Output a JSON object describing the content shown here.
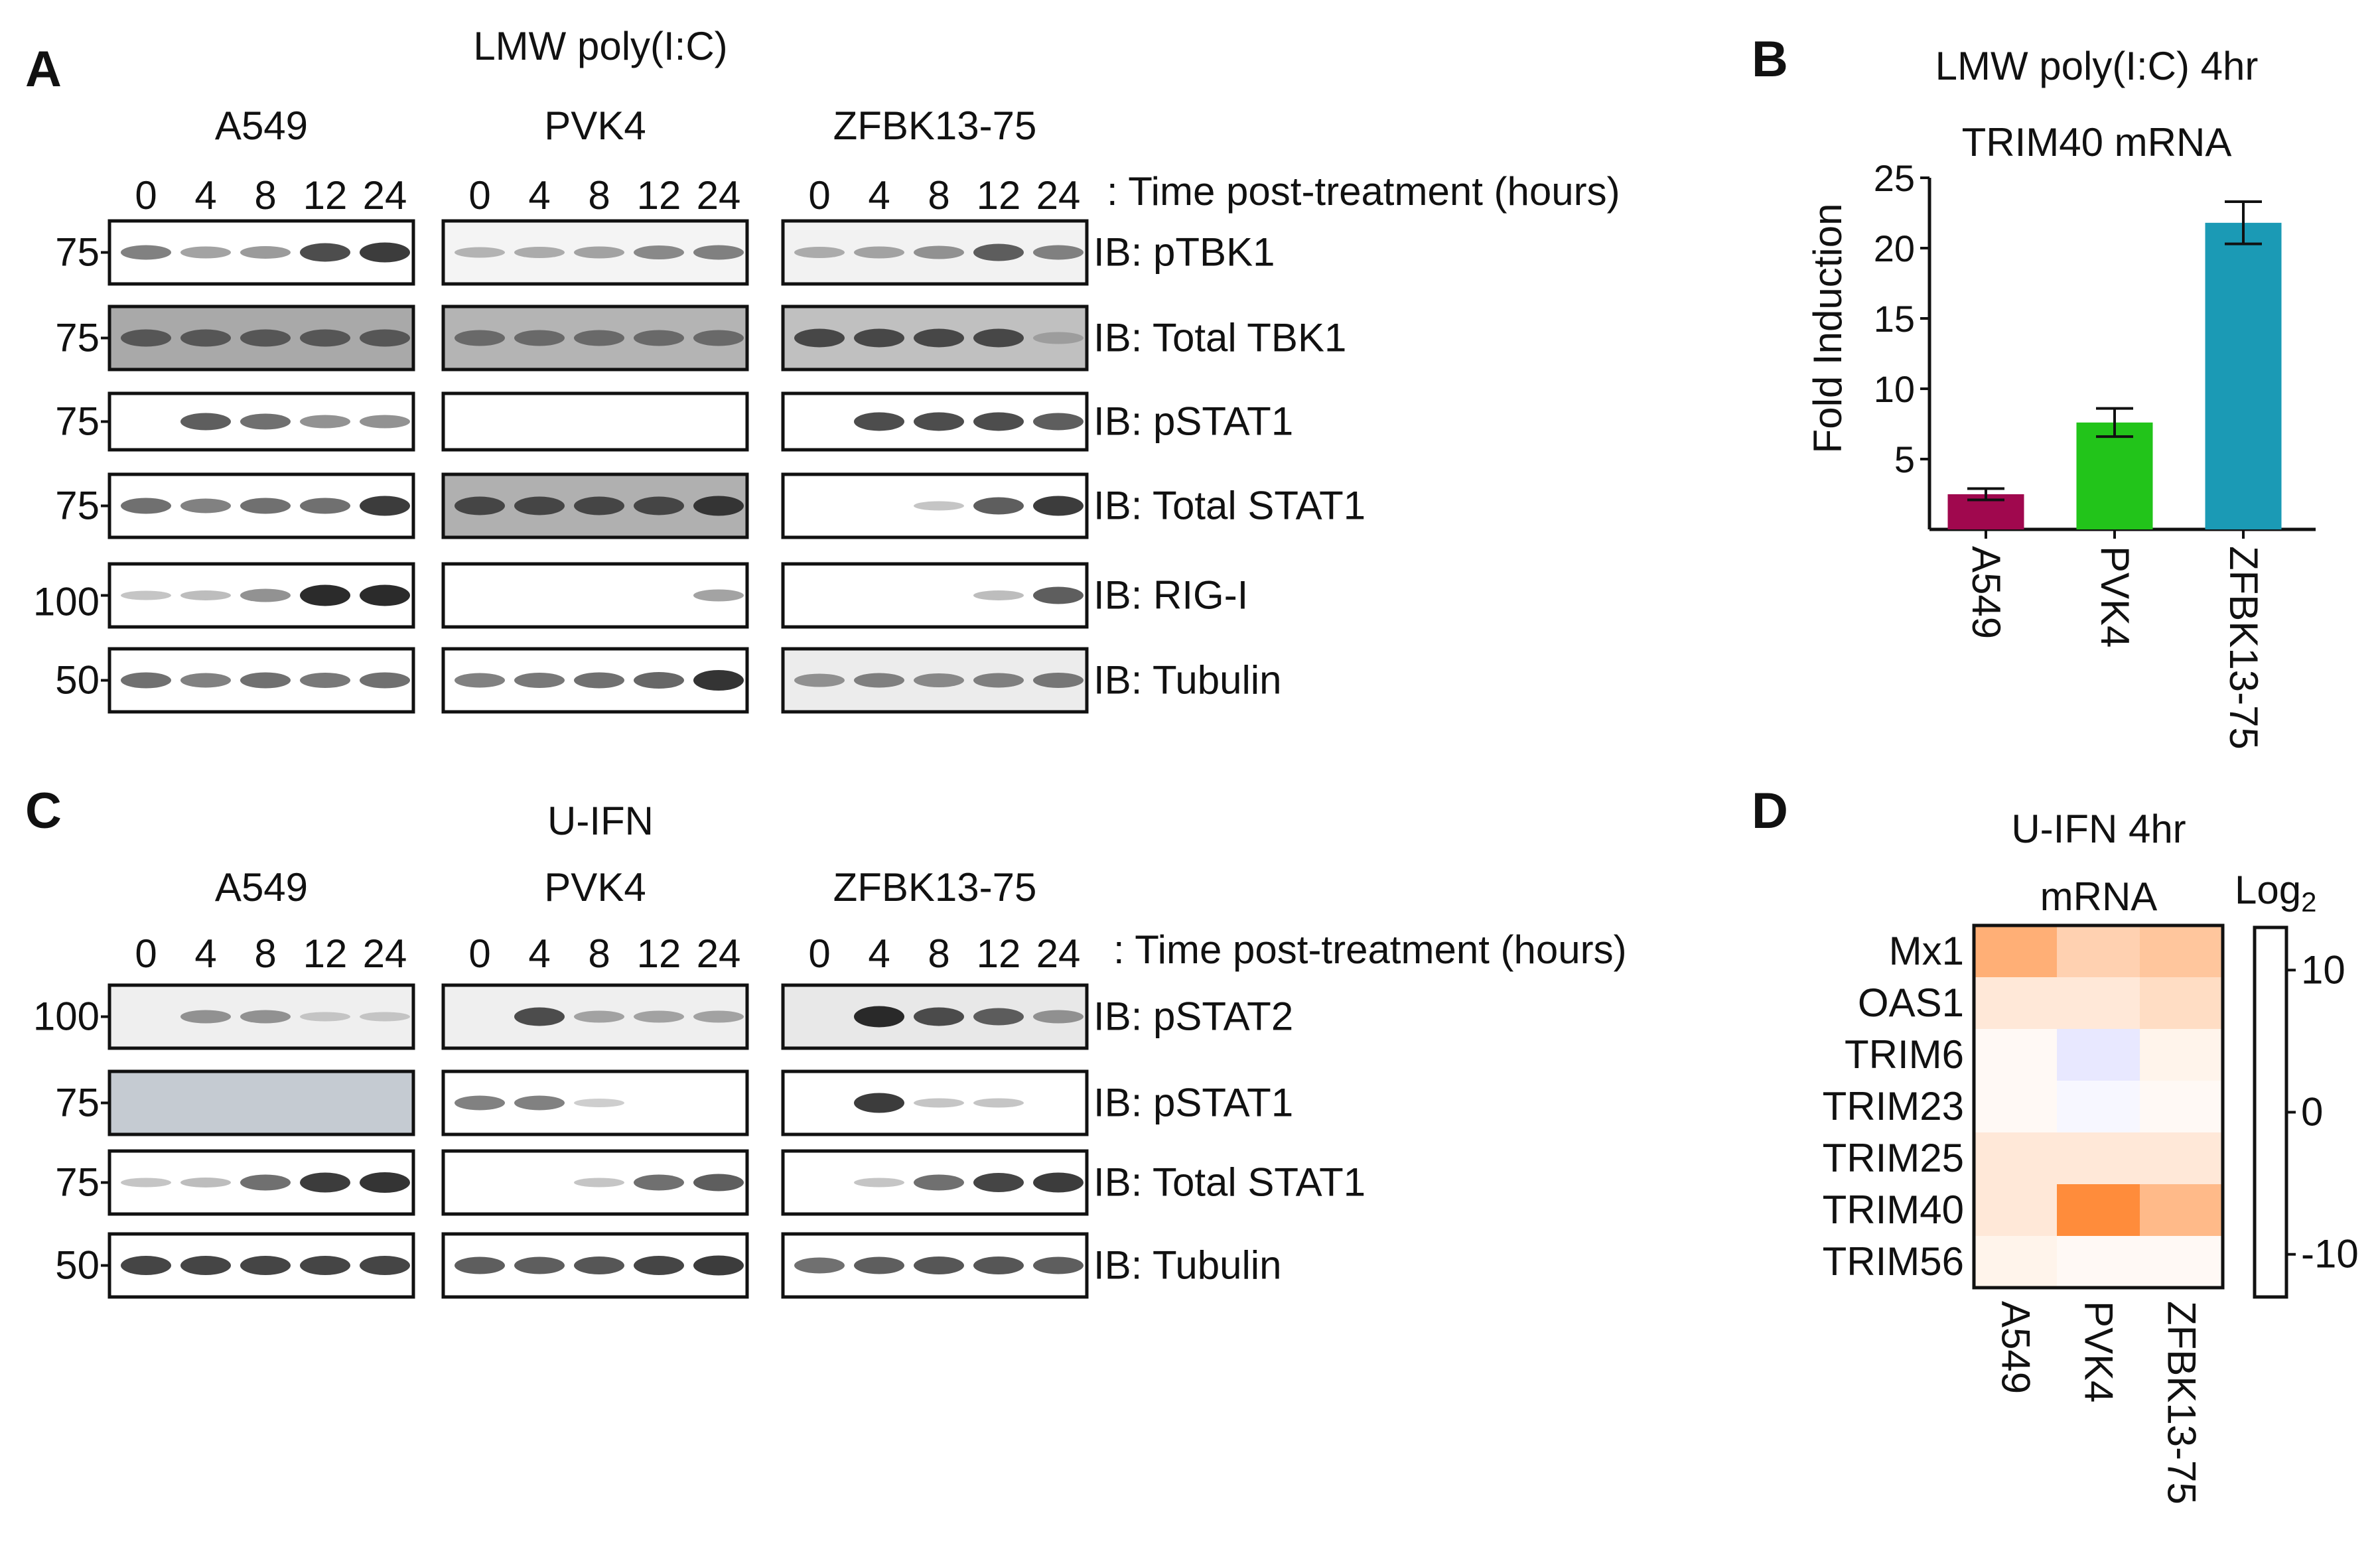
{
  "panels": {
    "A": "A",
    "B": "B",
    "C": "C",
    "D": "D"
  },
  "panel_A": {
    "title": "LMW poly(I:C)",
    "cell_lines": [
      "A549",
      "PVK4",
      "ZFBK13-75"
    ],
    "time_points": [
      "0",
      "4",
      "8",
      "12",
      "24"
    ],
    "time_label": ": Time post-treatment (hours)",
    "blots": [
      {
        "label": "IB: pTBK1",
        "mw": "75"
      },
      {
        "label": "IB: Total TBK1",
        "mw": "75"
      },
      {
        "label": "IB: pSTAT1",
        "mw": "75"
      },
      {
        "label": "IB: Total STAT1",
        "mw": "75"
      },
      {
        "label": "IB: RIG-I",
        "mw": "100"
      },
      {
        "label": "IB: Tubulin",
        "mw": "50"
      }
    ]
  },
  "panel_C": {
    "title": "U-IFN",
    "cell_lines": [
      "A549",
      "PVK4",
      "ZFBK13-75"
    ],
    "time_points": [
      "0",
      "4",
      "8",
      "12",
      "24"
    ],
    "time_label": ": Time post-treatment (hours)",
    "blots": [
      {
        "label": "IB: pSTAT2",
        "mw": "100"
      },
      {
        "label": "IB: pSTAT1",
        "mw": "75"
      },
      {
        "label": "IB: Total STAT1",
        "mw": "75"
      },
      {
        "label": "IB: Tubulin",
        "mw": "50"
      }
    ]
  },
  "chart_data": [
    {
      "type": "bar",
      "title": "LMW poly(I:C) 4hr",
      "subtitle": "TRIM40 mRNA",
      "ylabel": "Fold Induction",
      "categories": [
        "A549",
        "PVK4",
        "ZFBK13-75"
      ],
      "values": [
        2.5,
        7.6,
        21.8
      ],
      "errors": [
        0.4,
        1.0,
        1.5
      ],
      "colors": [
        "#A0084E",
        "#22C41A",
        "#1B9AB5"
      ],
      "ylim": [
        0,
        25
      ],
      "yticks": [
        "5",
        "10",
        "15",
        "20",
        "25"
      ]
    },
    {
      "type": "heatmap",
      "title": "U-IFN 4hr",
      "subtitle": "mRNA",
      "rows": [
        "Mx1",
        "OAS1",
        "TRIM6",
        "TRIM23",
        "TRIM25",
        "TRIM40",
        "TRIM56"
      ],
      "columns": [
        "A549",
        "PVK4",
        "ZFBK13-75"
      ],
      "values": [
        [
          7,
          4,
          5
        ],
        [
          2,
          2,
          3
        ],
        [
          0.5,
          -1.5,
          1
        ],
        [
          0.5,
          -0.5,
          0.5
        ],
        [
          2,
          2,
          2
        ],
        [
          2,
          10,
          6
        ],
        [
          1,
          0.5,
          0.5
        ]
      ],
      "colorbar_label": "Log",
      "colorbar_sub": "2",
      "colorbar_ticks": [
        "10",
        "0",
        "-10"
      ],
      "range": [
        -13,
        13
      ],
      "colors": {
        "high": "#FF6A00",
        "mid": "#FFFFFF",
        "low": "#3A3AFF"
      }
    }
  ]
}
